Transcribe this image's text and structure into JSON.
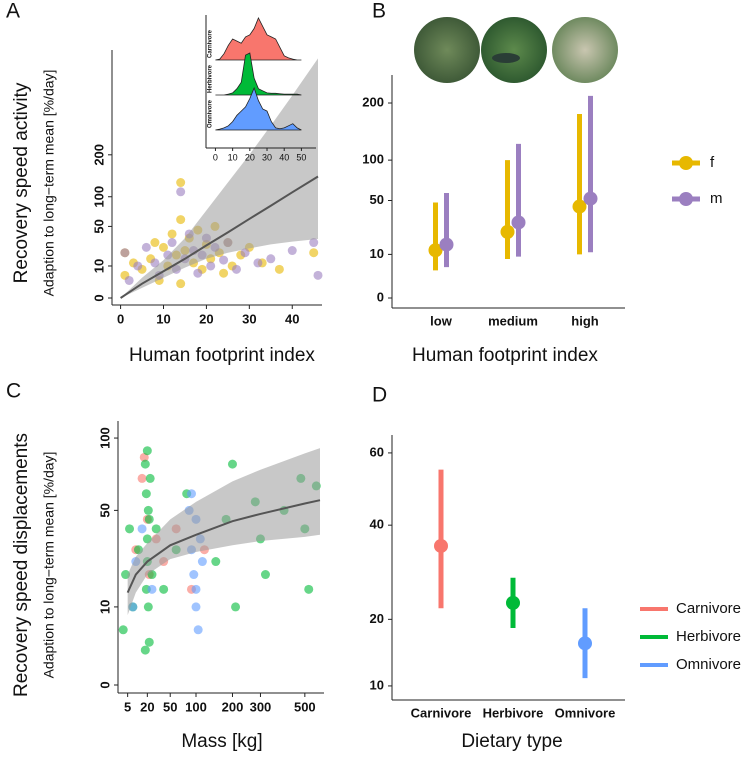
{
  "chart_data": [
    {
      "type": "scatter",
      "panel": "A",
      "xlabel": "Human footprint index",
      "ylabel": "Recovery speed activity",
      "ysublabel": "Adaption to long−term mean [%/day]",
      "yscale": "sqrt",
      "xlim": [
        -2,
        46
      ],
      "ylim": [
        0,
        576
      ],
      "xticks": [
        0,
        10,
        20,
        30,
        40
      ],
      "yticks": [
        0,
        10,
        50,
        100,
        200
      ],
      "series": [
        {
          "name": "f",
          "color": "#E7B800",
          "x": [
            1,
            1,
            3,
            5,
            7,
            8,
            9,
            10,
            11,
            12,
            13,
            14,
            14,
            15,
            16,
            17,
            18,
            19,
            20,
            21,
            22,
            23,
            24,
            25,
            26,
            28,
            30,
            33,
            37,
            45,
            14
          ],
          "y": [
            5,
            20,
            12,
            8,
            15,
            30,
            3,
            25,
            10,
            40,
            18,
            60,
            2,
            22,
            35,
            12,
            45,
            8,
            28,
            15,
            50,
            20,
            6,
            30,
            10,
            18,
            25,
            12,
            8,
            20,
            130
          ]
        },
        {
          "name": "m",
          "color": "#9B7FC0",
          "x": [
            1,
            2,
            4,
            6,
            8,
            9,
            11,
            12,
            13,
            14,
            15,
            16,
            17,
            18,
            19,
            20,
            21,
            22,
            24,
            25,
            27,
            29,
            32,
            35,
            40,
            45,
            46
          ],
          "y": [
            20,
            3,
            10,
            25,
            12,
            5,
            18,
            30,
            8,
            110,
            15,
            40,
            22,
            6,
            18,
            35,
            10,
            25,
            14,
            30,
            8,
            20,
            12,
            15,
            22,
            30,
            5
          ]
        }
      ],
      "trend": {
        "x": [
          0,
          5,
          10,
          15,
          20,
          25,
          30,
          35,
          40,
          46
        ],
        "fit": [
          0,
          2,
          7,
          15,
          27,
          42,
          61,
          83,
          109,
          144
        ],
        "lower": [
          0,
          1,
          4,
          9,
          15,
          20,
          24,
          28,
          31,
          34
        ],
        "upper": [
          0,
          4,
          14,
          35,
          75,
          130,
          200,
          290,
          400,
          560
        ]
      }
    },
    {
      "type": "ridgeline",
      "xlim": [
        -2,
        55
      ],
      "xticks": [
        0,
        10,
        20,
        30,
        40,
        50
      ],
      "x": [
        0,
        2.5,
        5,
        7.5,
        10,
        12.5,
        15,
        17.5,
        20,
        22.5,
        25,
        27.5,
        30,
        32.5,
        35,
        37.5,
        40,
        42.5,
        45,
        47.5,
        50
      ],
      "series": [
        {
          "name": "Carnivore",
          "color": "#F8766D",
          "values": [
            0,
            0.02,
            0.15,
            0.35,
            0.5,
            0.45,
            0.4,
            0.55,
            0.6,
            0.75,
            1.0,
            0.8,
            0.6,
            0.55,
            0.5,
            0.3,
            0.1,
            0.05,
            0.02,
            0,
            0
          ]
        },
        {
          "name": "Herbivore",
          "color": "#00BA38",
          "values": [
            0,
            0,
            0,
            0.02,
            0.05,
            0.15,
            0.3,
            0.95,
            1.0,
            0.4,
            0.15,
            0.1,
            0.05,
            0.04,
            0.04,
            0.03,
            0.02,
            0.02,
            0.02,
            0.02,
            0
          ]
        },
        {
          "name": "Omnivore",
          "color": "#619CFF",
          "values": [
            0,
            0.02,
            0.05,
            0.1,
            0.2,
            0.35,
            0.45,
            0.55,
            0.75,
            1.0,
            0.7,
            0.5,
            0.45,
            0.2,
            0.05,
            0.03,
            0.05,
            0.1,
            0.15,
            0.05,
            0
          ]
        }
      ]
    },
    {
      "type": "pointrange",
      "panel": "B",
      "xlabel": "Human footprint index",
      "yscale": "sqrt",
      "ylim": [
        0,
        250
      ],
      "yticks": [
        0,
        10,
        50,
        100,
        200
      ],
      "categories": [
        "low",
        "medium",
        "high"
      ],
      "series": [
        {
          "name": "f",
          "color": "#E7B800",
          "values": [
            12,
            23,
            44
          ],
          "lower": [
            4,
            8,
            10
          ],
          "upper": [
            48,
            100,
            178
          ]
        },
        {
          "name": "m",
          "color": "#9B7FC0",
          "values": [
            15,
            30,
            52
          ],
          "lower": [
            5,
            9,
            11
          ],
          "upper": [
            58,
            125,
            215
          ]
        }
      ]
    },
    {
      "type": "scatter",
      "panel": "C",
      "xlabel": "Mass [kg]",
      "ylabel": "Recovery speed displacements",
      "ysublabel": "Adaption to long−term mean [%/day]",
      "xscale": "sqrt",
      "yscale": "sqrt",
      "xlim": [
        1.3,
        580
      ],
      "ylim": [
        0,
        110
      ],
      "xticks": [
        5,
        20,
        50,
        100,
        200,
        300,
        500
      ],
      "yticks": [
        0,
        10,
        50,
        100
      ],
      "series": [
        {
          "name": "Carnivore",
          "color": "#F8766D",
          "x": [
            10,
            15,
            17,
            20,
            22,
            30,
            40,
            60,
            90,
            120
          ],
          "y": [
            30,
            70,
            85,
            45,
            20,
            35,
            25,
            40,
            15,
            30
          ]
        },
        {
          "name": "Herbivore",
          "color": "#00BA38",
          "x": [
            3,
            4,
            6,
            8,
            12,
            18,
            18,
            19,
            19,
            20,
            20,
            20,
            21,
            21,
            22,
            22,
            23,
            25,
            30,
            40,
            60,
            80,
            150,
            180,
            200,
            210,
            280,
            300,
            320,
            400,
            480,
            500,
            520,
            560
          ],
          "y": [
            5,
            20,
            40,
            10,
            30,
            2,
            80,
            15,
            60,
            90,
            35,
            25,
            10,
            50,
            45,
            3,
            70,
            20,
            40,
            15,
            30,
            60,
            25,
            45,
            80,
            10,
            55,
            35,
            20,
            50,
            70,
            40,
            15,
            65
          ]
        },
        {
          "name": "Omnivore",
          "color": "#619CFF",
          "x": [
            8,
            10,
            15,
            25,
            85,
            90,
            95,
            100,
            100,
            105,
            110,
            115,
            90,
            100
          ],
          "y": [
            10,
            25,
            40,
            15,
            50,
            30,
            20,
            45,
            10,
            5,
            35,
            25,
            60,
            15
          ]
        }
      ],
      "trend": {
        "x": [
          5,
          10,
          20,
          50,
          100,
          200,
          300,
          500,
          580
        ],
        "fit": [
          14,
          20,
          25,
          32,
          37,
          44,
          48,
          54,
          56
        ],
        "lower": [
          8,
          14,
          20,
          26,
          29,
          32,
          34,
          36,
          37
        ],
        "upper": [
          20,
          27,
          33,
          45,
          55,
          68,
          76,
          88,
          92
        ]
      }
    },
    {
      "type": "pointrange",
      "panel": "D",
      "xlabel": "Dietary type",
      "yscale": "sqrt",
      "ylim": [
        9.5,
        64
      ],
      "yticks": [
        10,
        20,
        40,
        60
      ],
      "categories": [
        "Carnivore",
        "Herbivore",
        "Omnivore"
      ],
      "colors": [
        "#F8766D",
        "#00BA38",
        "#619CFF"
      ],
      "values": [
        35,
        23,
        16
      ],
      "lower": [
        22,
        18.5,
        11
      ],
      "upper": [
        55,
        28,
        22
      ]
    }
  ]
}
